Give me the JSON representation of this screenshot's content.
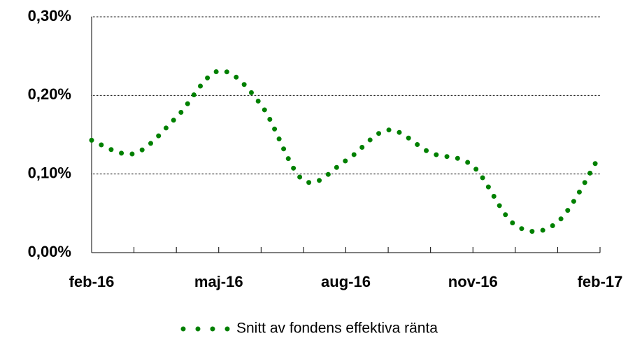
{
  "chart_data": {
    "type": "line",
    "categories": [
      "feb-16",
      null,
      null,
      "maj-16",
      null,
      null,
      "aug-16",
      null,
      null,
      "nov-16",
      null,
      null,
      "feb-17"
    ],
    "series": [
      {
        "name": "Snitt av fondens effektiva ränta",
        "color": "#008000",
        "values": [
          0.143,
          0.126,
          0.172,
          0.231,
          0.188,
          0.092,
          0.117,
          0.156,
          0.127,
          0.11,
          0.035,
          0.039,
          0.124
        ]
      }
    ],
    "ylim": [
      0,
      0.3
    ],
    "yticks": [
      {
        "value": 0,
        "label": "0,00%"
      },
      {
        "value": 0.1,
        "label": "0,10%"
      },
      {
        "value": 0.2,
        "label": "0,20%"
      },
      {
        "value": 0.3,
        "label": "0,30%"
      }
    ],
    "grid": true,
    "legend": "bottom"
  }
}
